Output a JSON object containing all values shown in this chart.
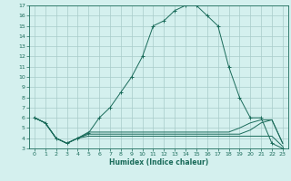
{
  "bg_color": "#d4f0ee",
  "grid_color": "#a8ccca",
  "line_color": "#1a6b5a",
  "xlabel": "Humidex (Indice chaleur)",
  "xlim": [
    -0.5,
    23.5
  ],
  "ylim": [
    3,
    17
  ],
  "xticks": [
    0,
    1,
    2,
    3,
    4,
    5,
    6,
    7,
    8,
    9,
    10,
    11,
    12,
    13,
    14,
    15,
    16,
    17,
    18,
    19,
    20,
    21,
    22,
    23
  ],
  "yticks": [
    3,
    4,
    5,
    6,
    7,
    8,
    9,
    10,
    11,
    12,
    13,
    14,
    15,
    16,
    17
  ],
  "series": [
    {
      "x": [
        0,
        1,
        2,
        3,
        4,
        5,
        6,
        7,
        8,
        9,
        10,
        11,
        12,
        13,
        14,
        15,
        16,
        17,
        18,
        19,
        20,
        21,
        22,
        23
      ],
      "y": [
        6.0,
        5.5,
        4.0,
        3.5,
        4.0,
        4.5,
        6.0,
        7.0,
        8.5,
        10.0,
        12.0,
        15.0,
        15.5,
        16.5,
        17.0,
        17.0,
        16.0,
        15.0,
        11.0,
        8.0,
        6.0,
        6.0,
        3.5,
        3.0
      ],
      "marker": true
    },
    {
      "x": [
        0,
        1,
        2,
        3,
        4,
        5,
        6,
        7,
        8,
        9,
        10,
        11,
        12,
        13,
        14,
        15,
        16,
        17,
        18,
        19,
        20,
        21,
        22,
        23
      ],
      "y": [
        6.0,
        5.5,
        4.0,
        3.5,
        4.0,
        4.2,
        4.2,
        4.2,
        4.2,
        4.2,
        4.2,
        4.2,
        4.2,
        4.2,
        4.2,
        4.2,
        4.2,
        4.2,
        4.2,
        4.2,
        4.2,
        4.2,
        4.2,
        3.2
      ],
      "marker": false
    },
    {
      "x": [
        0,
        1,
        2,
        3,
        4,
        5,
        6,
        7,
        8,
        9,
        10,
        11,
        12,
        13,
        14,
        15,
        16,
        17,
        18,
        19,
        20,
        21,
        22,
        23
      ],
      "y": [
        6.0,
        5.5,
        4.0,
        3.5,
        4.0,
        4.4,
        4.4,
        4.4,
        4.4,
        4.4,
        4.4,
        4.4,
        4.4,
        4.4,
        4.4,
        4.4,
        4.4,
        4.4,
        4.4,
        4.4,
        4.8,
        5.5,
        5.8,
        3.5
      ],
      "marker": false
    },
    {
      "x": [
        0,
        1,
        2,
        3,
        4,
        5,
        6,
        7,
        8,
        9,
        10,
        11,
        12,
        13,
        14,
        15,
        16,
        17,
        18,
        19,
        20,
        21,
        22,
        23
      ],
      "y": [
        6.0,
        5.5,
        4.0,
        3.5,
        4.0,
        4.6,
        4.6,
        4.6,
        4.6,
        4.6,
        4.6,
        4.6,
        4.6,
        4.6,
        4.6,
        4.6,
        4.6,
        4.6,
        4.6,
        5.0,
        5.5,
        5.8,
        5.8,
        3.5
      ],
      "marker": false
    }
  ]
}
